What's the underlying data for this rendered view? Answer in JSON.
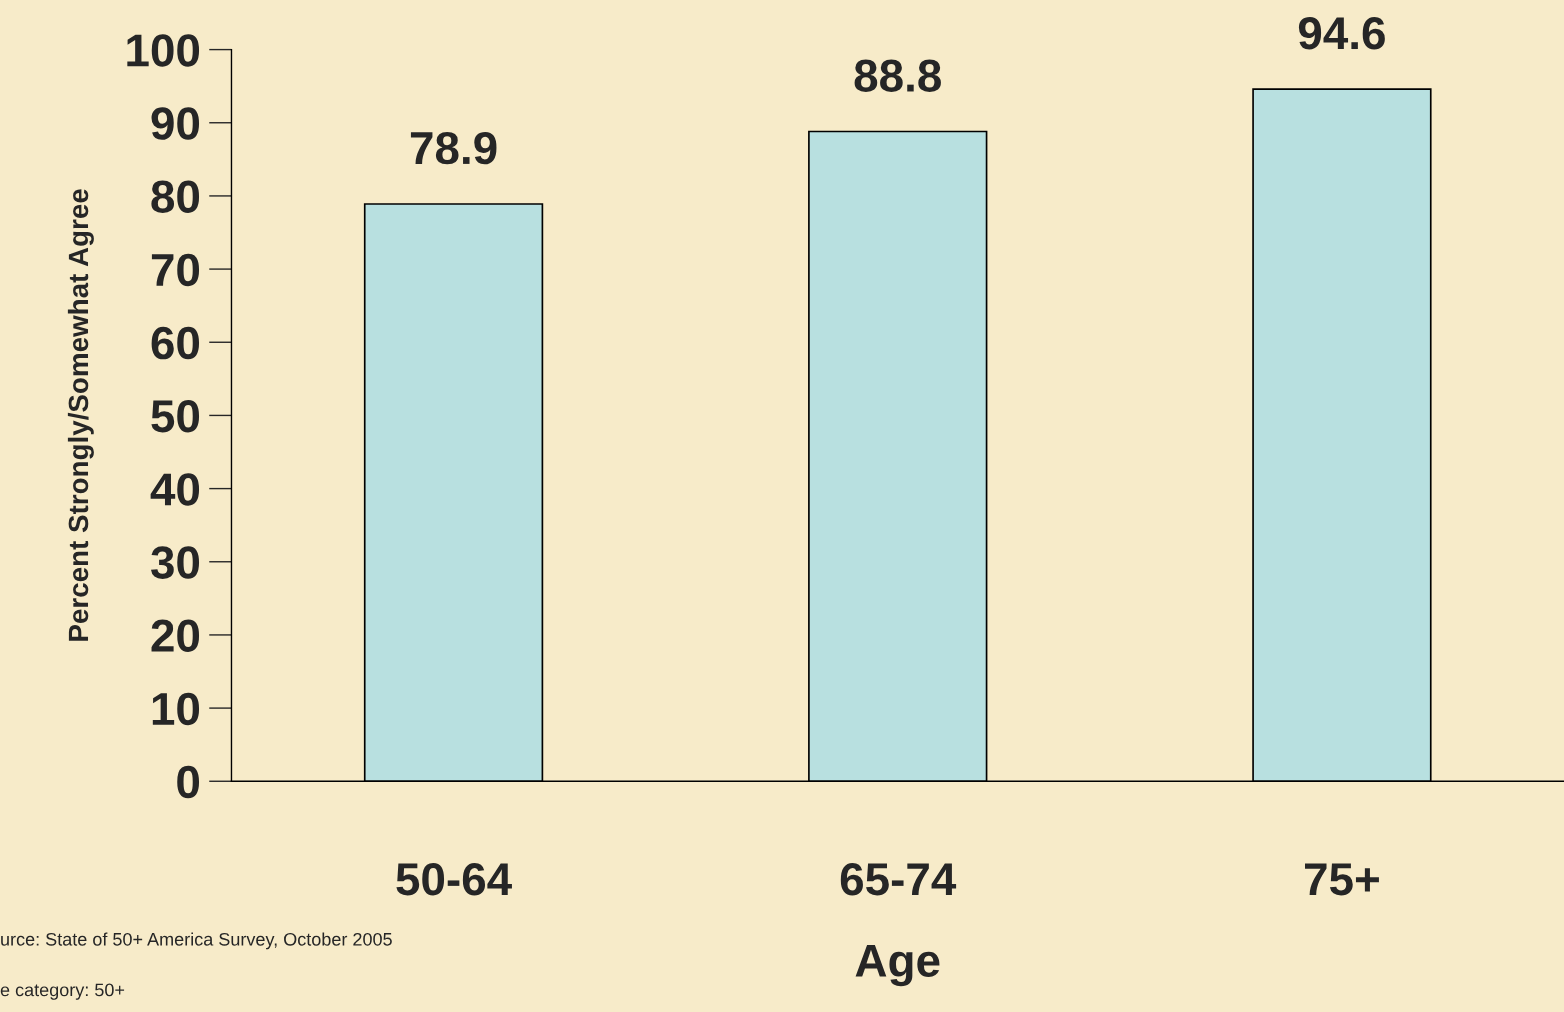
{
  "chart_data": {
    "type": "bar",
    "categories": [
      "50-64",
      "65-74",
      "75+"
    ],
    "values": [
      78.9,
      88.8,
      94.6
    ],
    "color": "#b8e0e0",
    "xlabel": "Age",
    "ylabel": "Percent Strongly/Somewhat Agree",
    "ylim": [
      0,
      100
    ],
    "yticks": [
      0,
      10,
      20,
      30,
      40,
      50,
      60,
      70,
      80,
      90,
      100
    ],
    "data_labels": true,
    "grid": false,
    "legend": false,
    "annotations": [
      "urce: State of 50+ America Survey, October 2005",
      "e category: 50+"
    ]
  }
}
